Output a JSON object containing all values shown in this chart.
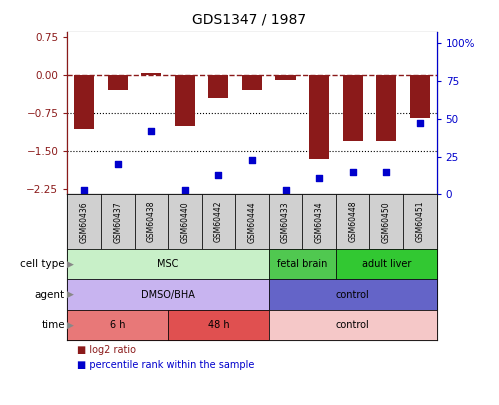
{
  "title": "GDS1347 / 1987",
  "samples": [
    "GSM60436",
    "GSM60437",
    "GSM60438",
    "GSM60440",
    "GSM60442",
    "GSM60444",
    "GSM60433",
    "GSM60434",
    "GSM60448",
    "GSM60450",
    "GSM60451"
  ],
  "log2_ratio": [
    -1.05,
    -0.28,
    0.05,
    -1.0,
    -0.45,
    -0.28,
    -0.1,
    -1.65,
    -1.3,
    -1.3,
    -0.85
  ],
  "percentile": [
    3,
    20,
    42,
    3,
    13,
    23,
    3,
    11,
    15,
    15,
    47
  ],
  "bar_color": "#8b1a1a",
  "dot_color": "#0000cc",
  "ylim_left": [
    -2.35,
    0.85
  ],
  "ylim_right": [
    0,
    107
  ],
  "yticks_left": [
    0.75,
    0,
    -0.75,
    -1.5,
    -2.25
  ],
  "yticks_right": [
    100,
    75,
    50,
    25,
    0
  ],
  "ytick_right_labels": [
    "100%",
    "75",
    "50",
    "25",
    "0"
  ],
  "dotted_lines": [
    -0.75,
    -1.5
  ],
  "bar_width": 0.6,
  "cell_type_groups": [
    {
      "label": "MSC",
      "start": 0,
      "end": 6,
      "color": "#c8f0c8"
    },
    {
      "label": "fetal brain",
      "start": 6,
      "end": 8,
      "color": "#50c850"
    },
    {
      "label": "adult liver",
      "start": 8,
      "end": 11,
      "color": "#32c832"
    }
  ],
  "agent_groups": [
    {
      "label": "DMSO/BHA",
      "start": 0,
      "end": 6,
      "color": "#c8b4f0"
    },
    {
      "label": "control",
      "start": 6,
      "end": 11,
      "color": "#6464c8"
    }
  ],
  "time_groups": [
    {
      "label": "6 h",
      "start": 0,
      "end": 3,
      "color": "#e87878"
    },
    {
      "label": "48 h",
      "start": 3,
      "end": 6,
      "color": "#e05050"
    },
    {
      "label": "control",
      "start": 6,
      "end": 11,
      "color": "#f5c8c8"
    }
  ],
  "row_labels": [
    "cell type",
    "agent",
    "time"
  ],
  "sample_box_color": "#d0d0d0",
  "legend_items": [
    {
      "label": "log2 ratio",
      "color": "#8b1a1a"
    },
    {
      "label": "percentile rank within the sample",
      "color": "#0000cc"
    }
  ]
}
